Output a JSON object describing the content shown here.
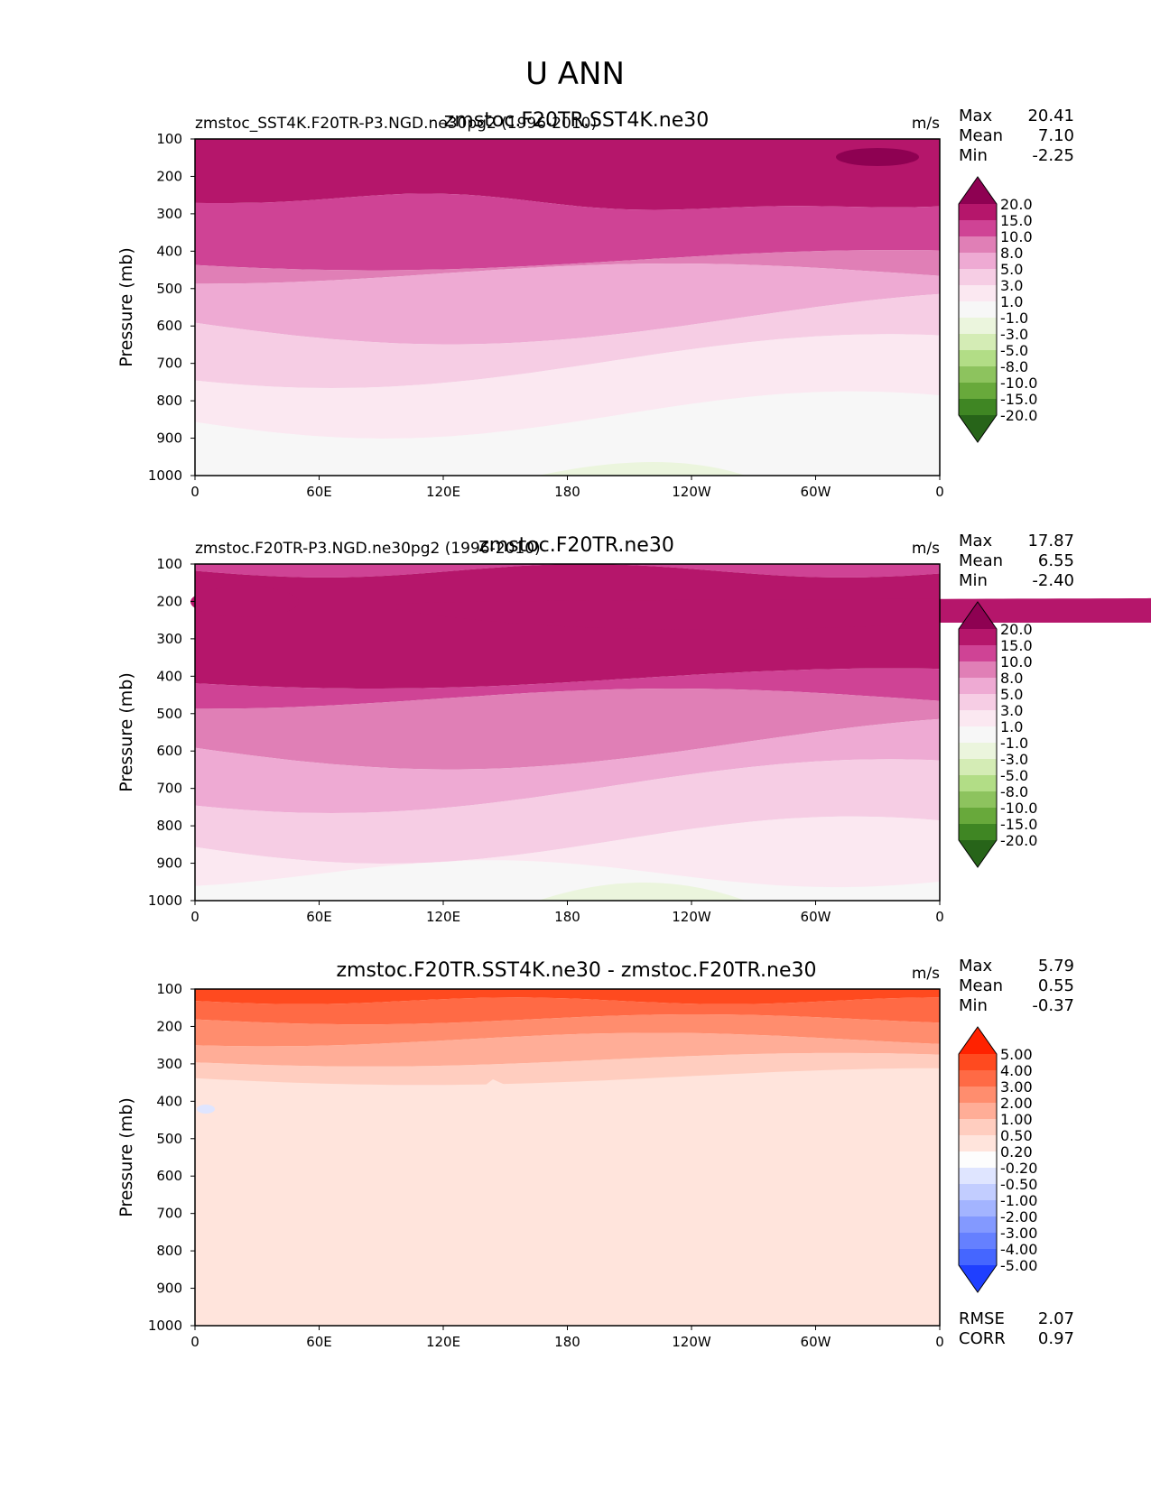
{
  "figure": {
    "title": "U ANN"
  },
  "chart_data": [
    {
      "type": "contour",
      "left_title": "zmstoc_SST4K.F20TR-P3.NGD.ne30pg2 (1996-2010)",
      "center_title": "zmstoc.F20TR.SST4K.ne30",
      "units": "m/s",
      "ylabel": "Pressure (mb)",
      "yticks": [
        "100",
        "200",
        "300",
        "400",
        "500",
        "600",
        "700",
        "800",
        "900",
        "1000"
      ],
      "ylim": [
        100,
        1000
      ],
      "xticks": [
        "0",
        "60E",
        "120E",
        "180",
        "120W",
        "60W",
        "0"
      ],
      "xlim": [
        0,
        360
      ],
      "stats": [
        {
          "label": "Max",
          "value": "20.41"
        },
        {
          "label": "Mean",
          "value": "7.10"
        },
        {
          "label": "Min",
          "value": "-2.25"
        }
      ],
      "colorbar": {
        "levels": [
          "20.0",
          "15.0",
          "10.0",
          "8.0",
          "5.0",
          "3.0",
          "1.0",
          "-1.0",
          "-3.0",
          "-5.0",
          "-8.0",
          "-10.0",
          "-15.0",
          "-20.0"
        ],
        "colors": [
          "#8e0152",
          "#b5166b",
          "#cf4395",
          "#e07fb6",
          "#eeaad3",
          "#f6cde4",
          "#fbe8f1",
          "#f7f7f7",
          "#ebf5dd",
          "#d4ecb5",
          "#b2dd86",
          "#8dc35e",
          "#68a93b",
          "#3f8623",
          "#276419"
        ]
      }
    },
    {
      "type": "contour",
      "left_title": "zmstoc.F20TR-P3.NGD.ne30pg2 (1996-2010)",
      "center_title": "zmstoc.F20TR.ne30",
      "units": "m/s",
      "ylabel": "Pressure (mb)",
      "yticks": [
        "100",
        "200",
        "300",
        "400",
        "500",
        "600",
        "700",
        "800",
        "900",
        "1000"
      ],
      "ylim": [
        100,
        1000
      ],
      "xticks": [
        "0",
        "60E",
        "120E",
        "180",
        "120W",
        "60W",
        "0"
      ],
      "xlim": [
        0,
        360
      ],
      "stats": [
        {
          "label": "Max",
          "value": "17.87"
        },
        {
          "label": "Mean",
          "value": "6.55"
        },
        {
          "label": "Min",
          "value": "-2.40"
        }
      ],
      "colorbar": {
        "levels": [
          "20.0",
          "15.0",
          "10.0",
          "8.0",
          "5.0",
          "3.0",
          "1.0",
          "-1.0",
          "-3.0",
          "-5.0",
          "-8.0",
          "-10.0",
          "-15.0",
          "-20.0"
        ],
        "colors": [
          "#8e0152",
          "#b5166b",
          "#cf4395",
          "#e07fb6",
          "#eeaad3",
          "#f6cde4",
          "#fbe8f1",
          "#f7f7f7",
          "#ebf5dd",
          "#d4ecb5",
          "#b2dd86",
          "#8dc35e",
          "#68a93b",
          "#3f8623",
          "#276419"
        ]
      }
    },
    {
      "type": "contour",
      "left_title": "",
      "center_title": "zmstoc.F20TR.SST4K.ne30 - zmstoc.F20TR.ne30",
      "units": "m/s",
      "ylabel": "Pressure (mb)",
      "yticks": [
        "100",
        "200",
        "300",
        "400",
        "500",
        "600",
        "700",
        "800",
        "900",
        "1000"
      ],
      "ylim": [
        100,
        1000
      ],
      "xticks": [
        "0",
        "60E",
        "120E",
        "180",
        "120W",
        "60W",
        "0"
      ],
      "xlim": [
        0,
        360
      ],
      "stats": [
        {
          "label": "Max",
          "value": "5.79"
        },
        {
          "label": "Mean",
          "value": "0.55"
        },
        {
          "label": "Min",
          "value": "-0.37"
        }
      ],
      "extra_stats": [
        {
          "label": "RMSE",
          "value": "2.07"
        },
        {
          "label": "CORR",
          "value": "0.97"
        }
      ],
      "colorbar": {
        "levels": [
          "5.00",
          "4.00",
          "3.00",
          "2.00",
          "1.00",
          "0.50",
          "0.20",
          "-0.20",
          "-0.50",
          "-1.00",
          "-2.00",
          "-3.00",
          "-4.00",
          "-5.00"
        ],
        "colors": [
          "#ff2200",
          "#ff4a1f",
          "#ff6a45",
          "#ff8d6e",
          "#ffad97",
          "#ffcdbf",
          "#ffe4dc",
          "#fdfdfd",
          "#dfe5ff",
          "#c2cdff",
          "#a3b4ff",
          "#8399ff",
          "#6580ff",
          "#4566ff",
          "#1f3fff"
        ]
      }
    }
  ]
}
